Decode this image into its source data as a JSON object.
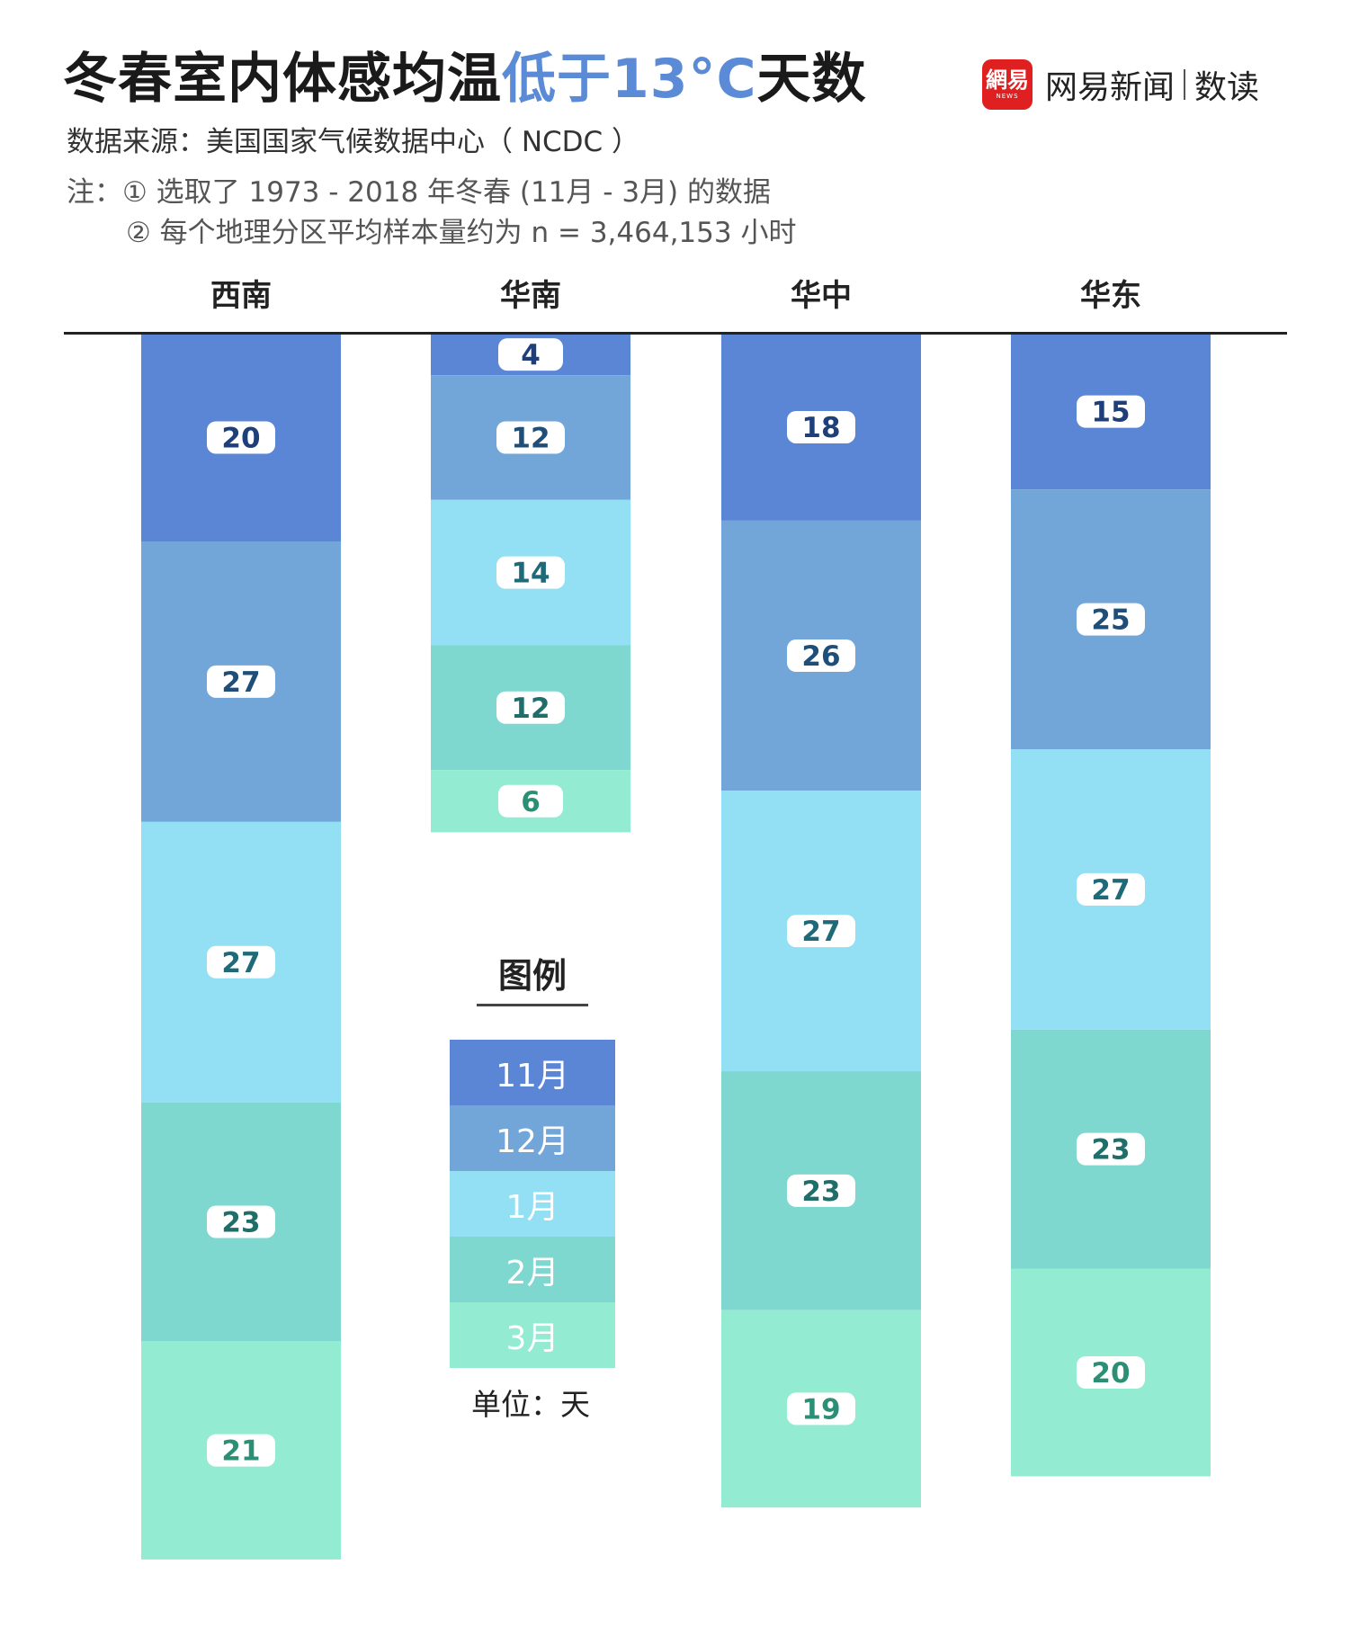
{
  "header": {
    "title_main": "冬春室内体感均温",
    "title_accent": "低于13°C",
    "title_end": "天数",
    "source": "数据来源：美国国家气候数据中心（ NCDC ）",
    "note1": "注：① 选取了 1973 - 2018 年冬春 (11月 - 3月) 的数据",
    "note2": "② 每个地理分区平均样本量约为 n = 3,464,153 小时"
  },
  "brand": {
    "logo_glyph": "網易",
    "logo_sub": "NEWS",
    "name": "网易新闻",
    "section": "数读"
  },
  "colors": {
    "months": [
      "#5b86d6",
      "#73a6d8",
      "#93dff4",
      "#7fd8d0",
      "#93ebd2"
    ],
    "label_text": [
      "#1f3f7a",
      "#1f4f78",
      "#1f6a78",
      "#1f6e6a",
      "#2a8f74"
    ],
    "accent": "#5b8bd6"
  },
  "chart_data": {
    "type": "bar",
    "stacked": true,
    "orientation": "vertical-down",
    "categories": [
      "西南",
      "华南",
      "华中",
      "华东"
    ],
    "series": [
      {
        "name": "11月",
        "values": [
          20,
          4,
          18,
          15
        ]
      },
      {
        "name": "12月",
        "values": [
          27,
          12,
          26,
          25
        ]
      },
      {
        "name": "1月",
        "values": [
          27,
          14,
          27,
          27
        ]
      },
      {
        "name": "2月",
        "values": [
          23,
          12,
          23,
          23
        ]
      },
      {
        "name": "3月",
        "values": [
          21,
          6,
          19,
          20
        ]
      }
    ],
    "unit": "天"
  },
  "legend": {
    "title": "图例",
    "items": [
      "11月",
      "12月",
      "1月",
      "2月",
      "3月"
    ],
    "unit_label": "单位：天"
  }
}
